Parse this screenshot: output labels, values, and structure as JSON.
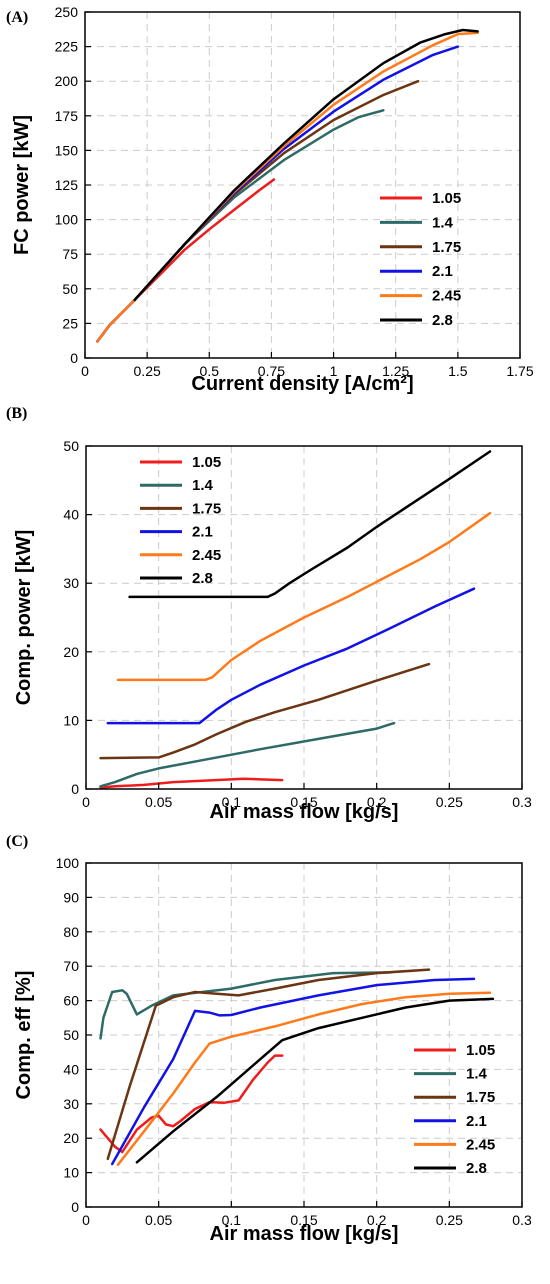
{
  "chart_data": [
    {
      "panel_label": "(A)",
      "type": "line",
      "xlabel": "Current density [A/cm²]",
      "ylabel": "FC power [kW]",
      "xlim": [
        0,
        1.75
      ],
      "ylim": [
        0,
        250
      ],
      "xticks": [
        "0",
        "0.25",
        "0.5",
        "0.75",
        "1",
        "1.25",
        "1.5",
        "1.75"
      ],
      "yticks": [
        "0",
        "25",
        "50",
        "75",
        "100",
        "125",
        "150",
        "175",
        "200",
        "225",
        "250"
      ],
      "grid": true,
      "legend_position": "lower-right",
      "series": [
        {
          "name": "1.05",
          "color": "#ee1c1c",
          "points": [
            [
              0.05,
              12
            ],
            [
              0.1,
              24
            ],
            [
              0.2,
              42
            ],
            [
              0.3,
              60
            ],
            [
              0.4,
              78
            ],
            [
              0.5,
              93
            ],
            [
              0.6,
              107
            ],
            [
              0.7,
              121
            ],
            [
              0.76,
              129
            ]
          ]
        },
        {
          "name": "1.4",
          "color": "#2e6b66",
          "points": [
            [
              0.05,
              12
            ],
            [
              0.1,
              24
            ],
            [
              0.2,
              42
            ],
            [
              0.4,
              82
            ],
            [
              0.6,
              116
            ],
            [
              0.8,
              143
            ],
            [
              1.0,
              165
            ],
            [
              1.1,
              174
            ],
            [
              1.2,
              179
            ]
          ]
        },
        {
          "name": "1.75",
          "color": "#6b3412",
          "points": [
            [
              0.05,
              12
            ],
            [
              0.1,
              24
            ],
            [
              0.2,
              42
            ],
            [
              0.4,
              82
            ],
            [
              0.6,
              118
            ],
            [
              0.8,
              148
            ],
            [
              1.0,
              172
            ],
            [
              1.2,
              190
            ],
            [
              1.34,
              200
            ]
          ]
        },
        {
          "name": "2.1",
          "color": "#1212e6",
          "points": [
            [
              0.05,
              12
            ],
            [
              0.1,
              24
            ],
            [
              0.2,
              42
            ],
            [
              0.4,
              82
            ],
            [
              0.6,
              119
            ],
            [
              0.8,
              151
            ],
            [
              1.0,
              178
            ],
            [
              1.2,
              201
            ],
            [
              1.4,
              219
            ],
            [
              1.5,
              225
            ]
          ]
        },
        {
          "name": "2.45",
          "color": "#ff7a1a",
          "points": [
            [
              0.05,
              12
            ],
            [
              0.1,
              24
            ],
            [
              0.2,
              42
            ],
            [
              0.4,
              82
            ],
            [
              0.6,
              120
            ],
            [
              0.8,
              153
            ],
            [
              1.0,
              183
            ],
            [
              1.2,
              207
            ],
            [
              1.4,
              226
            ],
            [
              1.5,
              234
            ],
            [
              1.58,
              235
            ]
          ]
        },
        {
          "name": "2.8",
          "color": "#000000",
          "points": [
            [
              0.2,
              42
            ],
            [
              0.4,
              82
            ],
            [
              0.6,
              121
            ],
            [
              0.8,
              155
            ],
            [
              1.0,
              187
            ],
            [
              1.2,
              213
            ],
            [
              1.35,
              228
            ],
            [
              1.45,
              234
            ],
            [
              1.52,
              237
            ],
            [
              1.58,
              236
            ]
          ]
        }
      ]
    },
    {
      "panel_label": "(B)",
      "type": "line",
      "xlabel": "Air mass flow [kg/s]",
      "ylabel": "Comp. power [kW]",
      "xlim": [
        0,
        0.3
      ],
      "ylim": [
        0,
        50
      ],
      "xticks": [
        "0",
        "0.05",
        "0.1",
        "0.15",
        "0.2",
        "0.25",
        "0.3"
      ],
      "yticks": [
        "0",
        "10",
        "20",
        "30",
        "40",
        "50"
      ],
      "grid": true,
      "legend_position": "top-left",
      "series": [
        {
          "name": "1.05",
          "color": "#ee1c1c",
          "points": [
            [
              0.01,
              0.2
            ],
            [
              0.02,
              0.4
            ],
            [
              0.04,
              0.6
            ],
            [
              0.06,
              1.0
            ],
            [
              0.08,
              1.2
            ],
            [
              0.1,
              1.4
            ],
            [
              0.108,
              1.5
            ],
            [
              0.12,
              1.4
            ],
            [
              0.135,
              1.3
            ]
          ]
        },
        {
          "name": "1.4",
          "color": "#2e6b66",
          "points": [
            [
              0.01,
              0.4
            ],
            [
              0.02,
              1.0
            ],
            [
              0.035,
              2.2
            ],
            [
              0.05,
              3.0
            ],
            [
              0.08,
              4.2
            ],
            [
              0.12,
              5.8
            ],
            [
              0.16,
              7.3
            ],
            [
              0.2,
              8.8
            ],
            [
              0.212,
              9.6
            ]
          ]
        },
        {
          "name": "1.75",
          "color": "#6b3412",
          "points": [
            [
              0.01,
              4.5
            ],
            [
              0.05,
              4.6
            ],
            [
              0.06,
              5.3
            ],
            [
              0.075,
              6.5
            ],
            [
              0.09,
              8.0
            ],
            [
              0.11,
              9.8
            ],
            [
              0.13,
              11.2
            ],
            [
              0.16,
              13.0
            ],
            [
              0.2,
              15.8
            ],
            [
              0.236,
              18.2
            ]
          ]
        },
        {
          "name": "2.1",
          "color": "#1212e6",
          "points": [
            [
              0.015,
              9.6
            ],
            [
              0.078,
              9.6
            ],
            [
              0.09,
              11.6
            ],
            [
              0.1,
              13.0
            ],
            [
              0.12,
              15.2
            ],
            [
              0.15,
              18.0
            ],
            [
              0.18,
              20.5
            ],
            [
              0.21,
              23.5
            ],
            [
              0.24,
              26.6
            ],
            [
              0.267,
              29.2
            ]
          ]
        },
        {
          "name": "2.45",
          "color": "#ff7a1a",
          "points": [
            [
              0.022,
              15.9
            ],
            [
              0.082,
              15.9
            ],
            [
              0.087,
              16.3
            ],
            [
              0.1,
              18.8
            ],
            [
              0.12,
              21.6
            ],
            [
              0.15,
              25.0
            ],
            [
              0.18,
              28.0
            ],
            [
              0.2,
              30.2
            ],
            [
              0.23,
              33.5
            ],
            [
              0.25,
              36.0
            ],
            [
              0.278,
              40.2
            ]
          ]
        },
        {
          "name": "2.8",
          "color": "#000000",
          "points": [
            [
              0.03,
              28.0
            ],
            [
              0.125,
              28.0
            ],
            [
              0.13,
              28.5
            ],
            [
              0.14,
              30.0
            ],
            [
              0.155,
              32.0
            ],
            [
              0.18,
              35.2
            ],
            [
              0.2,
              38.2
            ],
            [
              0.22,
              41.0
            ],
            [
              0.25,
              45.2
            ],
            [
              0.278,
              49.2
            ]
          ]
        }
      ]
    },
    {
      "panel_label": "(C)",
      "type": "line",
      "xlabel": "Air mass flow [kg/s]",
      "ylabel": "Comp. eff [%]",
      "xlim": [
        0,
        0.3
      ],
      "ylim": [
        0,
        100
      ],
      "xticks": [
        "0",
        "0.05",
        "0.1",
        "0.15",
        "0.2",
        "0.25",
        "0.3"
      ],
      "yticks": [
        "0",
        "10",
        "20",
        "30",
        "40",
        "50",
        "60",
        "70",
        "80",
        "90",
        "100"
      ],
      "grid": true,
      "legend_position": "lower-right",
      "series": [
        {
          "name": "1.05",
          "color": "#ee1c1c",
          "points": [
            [
              0.01,
              22.5
            ],
            [
              0.02,
              17.5
            ],
            [
              0.025,
              16.0
            ],
            [
              0.035,
              22.5
            ],
            [
              0.045,
              26.0
            ],
            [
              0.05,
              26.5
            ],
            [
              0.055,
              24.0
            ],
            [
              0.06,
              23.5
            ],
            [
              0.065,
              25.0
            ],
            [
              0.075,
              28.5
            ],
            [
              0.085,
              30.5
            ],
            [
              0.095,
              30.3
            ],
            [
              0.105,
              31.0
            ],
            [
              0.115,
              37.0
            ],
            [
              0.125,
              42.0
            ],
            [
              0.13,
              44.0
            ],
            [
              0.135,
              44.0
            ]
          ]
        },
        {
          "name": "1.4",
          "color": "#2e6b66",
          "points": [
            [
              0.01,
              49.0
            ],
            [
              0.012,
              55.0
            ],
            [
              0.018,
              62.5
            ],
            [
              0.025,
              63.0
            ],
            [
              0.028,
              62.0
            ],
            [
              0.035,
              56.0
            ],
            [
              0.045,
              58.5
            ],
            [
              0.06,
              61.5
            ],
            [
              0.08,
              62.5
            ],
            [
              0.1,
              63.5
            ],
            [
              0.13,
              66.0
            ],
            [
              0.17,
              68.0
            ],
            [
              0.21,
              68.2
            ]
          ]
        },
        {
          "name": "1.75",
          "color": "#6b3412",
          "points": [
            [
              0.015,
              14.0
            ],
            [
              0.03,
              35.0
            ],
            [
              0.048,
              58.5
            ],
            [
              0.06,
              61.0
            ],
            [
              0.075,
              62.5
            ],
            [
              0.09,
              62.0
            ],
            [
              0.105,
              61.5
            ],
            [
              0.13,
              63.5
            ],
            [
              0.16,
              66.0
            ],
            [
              0.2,
              68.0
            ],
            [
              0.236,
              69.0
            ]
          ]
        },
        {
          "name": "2.1",
          "color": "#1212e6",
          "points": [
            [
              0.018,
              12.5
            ],
            [
              0.04,
              29.0
            ],
            [
              0.06,
              43.0
            ],
            [
              0.075,
              57.0
            ],
            [
              0.085,
              56.5
            ],
            [
              0.092,
              55.7
            ],
            [
              0.1,
              55.8
            ],
            [
              0.12,
              58.0
            ],
            [
              0.16,
              61.5
            ],
            [
              0.2,
              64.5
            ],
            [
              0.24,
              66.0
            ],
            [
              0.267,
              66.3
            ]
          ]
        },
        {
          "name": "2.45",
          "color": "#ff7a1a",
          "points": [
            [
              0.022,
              12.3
            ],
            [
              0.04,
              22.0
            ],
            [
              0.06,
              33.0
            ],
            [
              0.075,
              42.0
            ],
            [
              0.085,
              47.5
            ],
            [
              0.1,
              49.5
            ],
            [
              0.13,
              52.5
            ],
            [
              0.16,
              56.0
            ],
            [
              0.19,
              59.0
            ],
            [
              0.22,
              61.0
            ],
            [
              0.25,
              62.0
            ],
            [
              0.278,
              62.3
            ]
          ]
        },
        {
          "name": "2.8",
          "color": "#000000",
          "points": [
            [
              0.035,
              13.0
            ],
            [
              0.06,
              22.0
            ],
            [
              0.09,
              32.0
            ],
            [
              0.12,
              43.0
            ],
            [
              0.135,
              48.5
            ],
            [
              0.16,
              52.0
            ],
            [
              0.19,
              55.0
            ],
            [
              0.22,
              58.0
            ],
            [
              0.25,
              60.0
            ],
            [
              0.28,
              60.5
            ]
          ]
        }
      ]
    }
  ]
}
